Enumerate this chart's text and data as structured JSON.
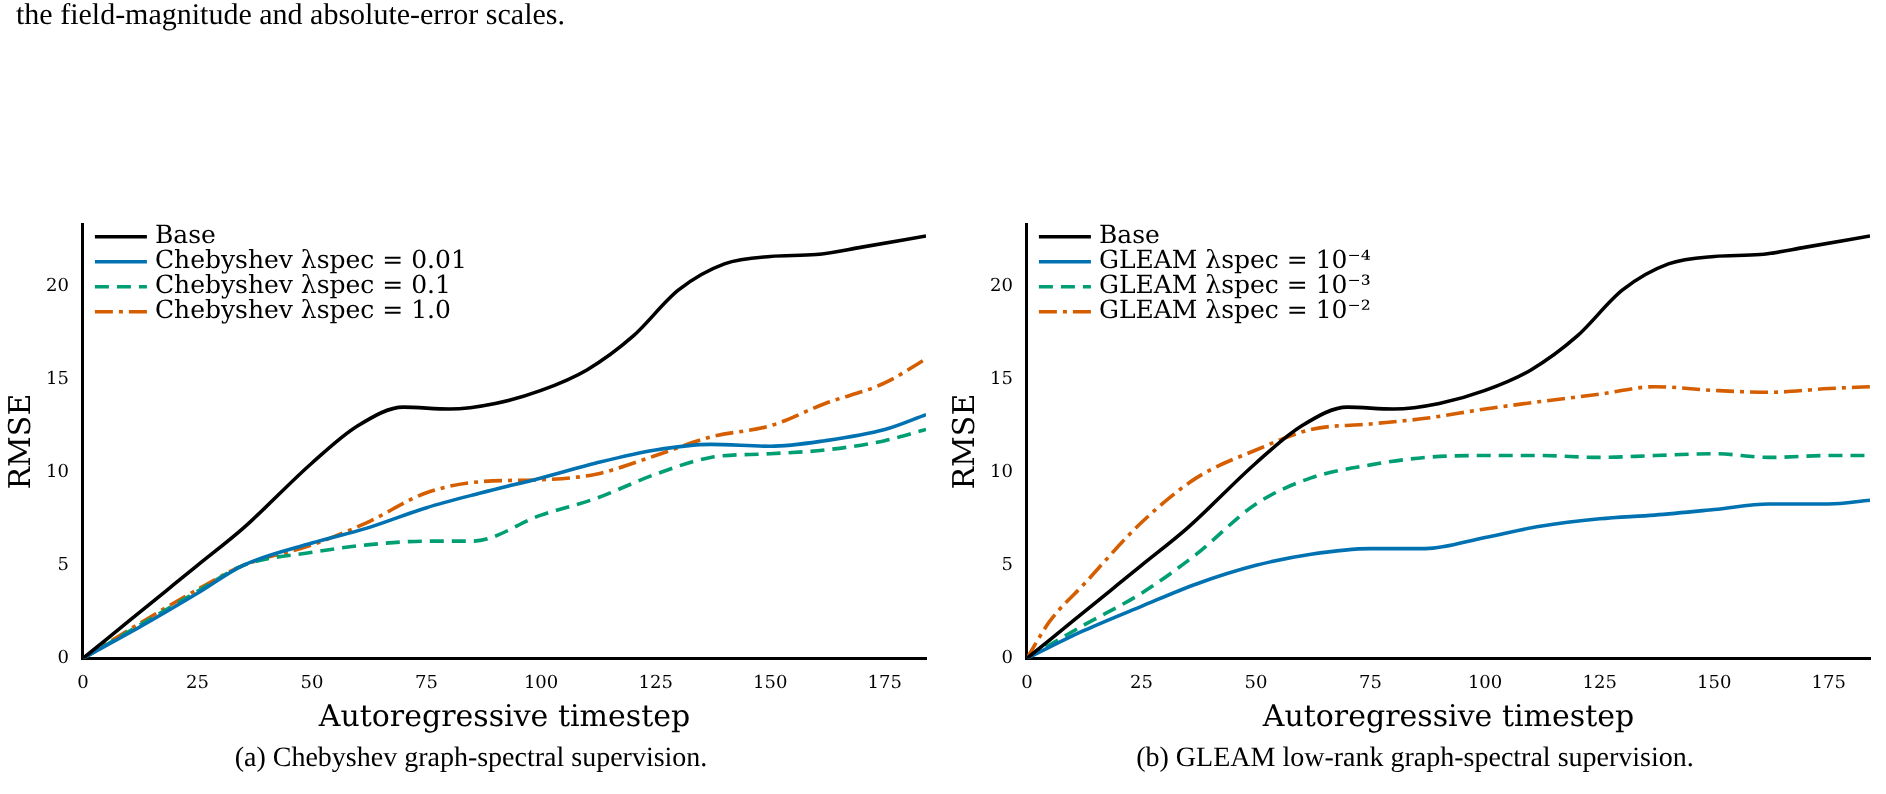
{
  "chart_data": [
    {
      "type": "line",
      "xlabel": "Autoregressive timestep",
      "ylabel": "RMSE",
      "xlim": [
        0,
        184
      ],
      "xticks": [
        0,
        25,
        50,
        75,
        100,
        125,
        150,
        175
      ],
      "ylim": [
        0,
        23.3
      ],
      "yticks": [
        0,
        5,
        10,
        15,
        20
      ],
      "legend": "top left",
      "annotations": [
        "the field-magnitude and absolute-error scales.",
        "(a) Chebyshev graph-spectral supervision."
      ],
      "series": [
        {
          "name": "Base",
          "color": "#000000",
          "line_style": "solid",
          "x": [
            0,
            10,
            20,
            25,
            35,
            50,
            60,
            70,
            80,
            90,
            100,
            110,
            120,
            130,
            140,
            150,
            160,
            170,
            184
          ],
          "values": [
            0,
            2,
            4,
            5,
            7,
            10.5,
            12.5,
            13.5,
            13.4,
            13.7,
            14.4,
            15.5,
            17.3,
            19.8,
            21.2,
            21.6,
            21.7,
            22.1,
            22.7
          ]
        },
        {
          "name": "Chebyshev λspec = 0.01",
          "color": "#0072b2",
          "line_style": "solid",
          "x": [
            0,
            12.5,
            25,
            35,
            50,
            62,
            75,
            87,
            100,
            112,
            125,
            137,
            150,
            162,
            175,
            184
          ],
          "values": [
            0,
            1.7,
            3.5,
            5,
            6.2,
            7,
            8.1,
            8.9,
            9.7,
            10.5,
            11.2,
            11.5,
            11.4,
            11.7,
            12.3,
            13.1
          ]
        },
        {
          "name": "Chebyshev λspec = 0.1",
          "color": "#009e73",
          "line_style": "dashed",
          "x": [
            0,
            12.5,
            25,
            35,
            50,
            62,
            75,
            85,
            100,
            112,
            125,
            137,
            150,
            162,
            175,
            184
          ],
          "values": [
            0,
            1.8,
            3.6,
            5,
            5.7,
            6.1,
            6.3,
            6.3,
            7.7,
            8.6,
            9.9,
            10.8,
            11,
            11.2,
            11.7,
            12.3
          ]
        },
        {
          "name": "Chebyshev λspec = 1.0",
          "color": "#d55e00",
          "line_style": "dashdot",
          "x": [
            0,
            12.5,
            25,
            35,
            50,
            62,
            75,
            87,
            100,
            112,
            125,
            137,
            150,
            162,
            175,
            184
          ],
          "values": [
            0,
            1.9,
            3.7,
            5,
            6.1,
            7.3,
            8.9,
            9.5,
            9.6,
            9.9,
            10.9,
            11.9,
            12.5,
            13.7,
            14.8,
            16.1
          ]
        }
      ]
    },
    {
      "type": "line",
      "xlabel": "Autoregressive timestep",
      "ylabel": "RMSE",
      "xlim": [
        0,
        184
      ],
      "xticks": [
        0,
        25,
        50,
        75,
        100,
        125,
        150,
        175
      ],
      "ylim": [
        0,
        23.3
      ],
      "yticks": [
        0,
        5,
        10,
        15,
        20
      ],
      "legend": "top left",
      "annotations": [
        "(b) GLEAM low-rank graph-spectral supervision."
      ],
      "series": [
        {
          "name": "Base",
          "color": "#000000",
          "line_style": "solid",
          "x": [
            0,
            10,
            20,
            25,
            35,
            50,
            60,
            70,
            80,
            90,
            100,
            110,
            120,
            130,
            140,
            150,
            160,
            170,
            184
          ],
          "values": [
            0,
            2,
            4,
            5,
            7,
            10.5,
            12.5,
            13.5,
            13.4,
            13.7,
            14.4,
            15.5,
            17.3,
            19.8,
            21.2,
            21.6,
            21.7,
            22.1,
            22.7
          ]
        },
        {
          "name": "GLEAM λspec = 10⁻⁴",
          "color": "#0072b2",
          "line_style": "solid",
          "x": [
            0,
            12.5,
            25,
            37,
            50,
            62,
            75,
            87,
            100,
            112,
            125,
            137,
            150,
            162,
            175,
            184
          ],
          "values": [
            0,
            1.5,
            2.8,
            4,
            5,
            5.6,
            5.9,
            5.9,
            6.5,
            7.1,
            7.5,
            7.7,
            8,
            8.3,
            8.3,
            8.5
          ]
        },
        {
          "name": "GLEAM λspec = 10⁻³",
          "color": "#009e73",
          "line_style": "dashed",
          "x": [
            0,
            12.5,
            25,
            37,
            50,
            62,
            75,
            87,
            100,
            112,
            125,
            137,
            150,
            162,
            175,
            184
          ],
          "values": [
            0,
            1.8,
            3.5,
            5.6,
            8.3,
            9.7,
            10.4,
            10.8,
            10.9,
            10.9,
            10.8,
            10.9,
            11,
            10.8,
            10.9,
            10.9
          ]
        },
        {
          "name": "GLEAM λspec = 10⁻²",
          "color": "#d55e00",
          "line_style": "dashdot",
          "x": [
            0,
            5,
            12.5,
            25,
            37,
            50,
            62,
            75,
            87,
            100,
            112,
            125,
            137,
            150,
            162,
            175,
            184
          ],
          "values": [
            0,
            2,
            4,
            7.3,
            9.7,
            11.2,
            12.3,
            12.6,
            12.9,
            13.4,
            13.8,
            14.2,
            14.6,
            14.4,
            14.3,
            14.5,
            14.6
          ]
        }
      ]
    }
  ]
}
